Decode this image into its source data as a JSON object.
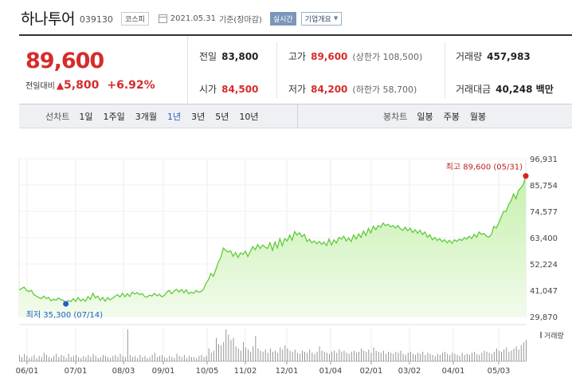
{
  "header": {
    "stock_name": "하나투어",
    "stock_code": "039130",
    "market": "코스피",
    "date": "2021.05.31",
    "date_suffix": "기준(장마감)",
    "realtime": "실시간",
    "overview": "기업개요"
  },
  "price": {
    "current": "89,600",
    "change_label": "전일대비",
    "change_value": "5,800",
    "change_percent": "+6.92%"
  },
  "stats": {
    "prev_label": "전일",
    "prev": "83,800",
    "open_label": "시가",
    "open": "84,500",
    "high_label": "고가",
    "high": "89,600",
    "upper_limit": "(상한가 108,500)",
    "low_label": "저가",
    "low": "84,200",
    "lower_limit": "(하한가 58,700)",
    "volume_label": "거래량",
    "volume": "457,983",
    "amount_label": "거래대금",
    "amount": "40,248 백만"
  },
  "nav": {
    "line_title": "선차트",
    "line_items": [
      "1일",
      "1주일",
      "3개월",
      "1년",
      "3년",
      "5년",
      "10년"
    ],
    "active": "1년",
    "candle_title": "봉차트",
    "candle_items": [
      "일봉",
      "주봉",
      "월봉"
    ]
  },
  "colors": {
    "up": "#d62c2c",
    "line": "#5fcb3b",
    "fill_top": "#c6f0ad",
    "low_marker": "#1f5fc4",
    "high_marker": "#e01e1e"
  },
  "chart_data": {
    "type": "area",
    "y_ticks": [
      "96,931",
      "85,754",
      "74,577",
      "63,400",
      "52,224",
      "41,047",
      "29,870"
    ],
    "ylim": [
      29870,
      96931
    ],
    "x_ticks": [
      "06/01",
      "07/01",
      "08/03",
      "09/01",
      "10/05",
      "11/02",
      "12/01",
      "01/04",
      "02/01",
      "03/02",
      "04/01",
      "05/03"
    ],
    "series": [
      {
        "values": [
          41200,
          41800,
          42400,
          41000,
          40500,
          41000,
          39200,
          38600,
          38000,
          37500,
          38600,
          37500,
          38000,
          36600,
          37300,
          36800,
          37800,
          37000,
          36800,
          35300,
          36800,
          36200,
          37500,
          36300,
          38000,
          36500,
          37300,
          36400,
          38400,
          37200,
          39800,
          37800,
          38600,
          36800,
          38000,
          36400,
          38000,
          37000,
          37700,
          38500,
          39200,
          38200,
          39800,
          38300,
          39600,
          38400,
          40300,
          39500,
          40100,
          39200,
          39700,
          38400,
          38100,
          39000,
          38600,
          39800,
          38700,
          39400,
          38300,
          38800,
          40200,
          41000,
          39600,
          40700,
          41500,
          40300,
          41400,
          40000,
          41200,
          39600,
          40300,
          39800,
          41000,
          40200,
          40500,
          41600,
          44000,
          45600,
          48200,
          47000,
          50000,
          53000,
          55000,
          59000,
          58000,
          57300,
          57800,
          55500,
          57100,
          55000,
          57000,
          56300,
          57700,
          55400,
          57500,
          59600,
          58300,
          60500,
          58800,
          60300,
          59400,
          58800,
          61300,
          58000,
          61500,
          59000,
          63000,
          60000,
          63000,
          62000,
          64500,
          62300,
          66000,
          64500,
          65500,
          63800,
          64800,
          61800,
          62700,
          61200,
          62000,
          60800,
          61800,
          60600,
          61500,
          60000,
          62800,
          60300,
          62500,
          61200,
          63500,
          62800,
          64000,
          62000,
          63300,
          61800,
          64600,
          62800,
          65000,
          63500,
          66200,
          64300,
          67300,
          65400,
          68300,
          66800,
          68500,
          67800,
          69600,
          68500,
          69100,
          68000,
          68500,
          67500,
          68500,
          67200,
          66500,
          67800,
          66300,
          67400,
          65600,
          66800,
          65300,
          66600,
          64800,
          65800,
          63600,
          64600,
          62500,
          63500,
          62200,
          63000,
          61700,
          62600,
          61200,
          62300,
          61000,
          62500,
          61800,
          62800,
          62200,
          63400,
          62800,
          64000,
          63000,
          64800,
          63600,
          65800,
          64800,
          65200,
          64000,
          63600,
          64800,
          68200,
          67500,
          69600,
          72200,
          74600,
          74500,
          77500,
          79000,
          82000,
          80000,
          83400,
          84500,
          86000,
          89600
        ],
        "volumes": [
          6,
          4,
          7,
          5,
          3,
          4,
          6,
          3,
          5,
          4,
          8,
          6,
          4,
          3,
          5,
          7,
          4,
          6,
          5,
          3,
          7,
          4,
          5,
          6,
          4,
          3,
          5,
          4,
          6,
          4,
          7,
          5,
          3,
          4,
          6,
          5,
          4,
          3,
          5,
          6,
          4,
          7,
          5,
          4,
          30,
          6,
          4,
          5,
          3,
          6,
          4,
          5,
          3,
          4,
          6,
          8,
          4,
          5,
          6,
          4,
          3,
          5,
          4,
          3,
          7,
          5,
          4,
          6,
          3,
          5,
          4,
          4,
          3,
          5,
          6,
          4,
          5,
          12,
          8,
          10,
          22,
          16,
          15,
          18,
          30,
          25,
          20,
          22,
          14,
          12,
          10,
          18,
          13,
          11,
          9,
          14,
          24,
          12,
          10,
          9,
          11,
          8,
          12,
          9,
          10,
          8,
          13,
          11,
          15,
          12,
          10,
          9,
          11,
          8,
          7,
          10,
          9,
          8,
          11,
          8,
          7,
          9,
          14,
          10,
          9,
          8,
          7,
          9,
          10,
          8,
          11,
          9,
          10,
          8,
          7,
          9,
          10,
          8,
          9,
          12,
          10,
          9,
          11,
          8,
          13,
          10,
          9,
          8,
          10,
          7,
          9,
          8,
          7,
          9,
          8,
          10,
          7,
          6,
          8,
          9,
          7,
          6,
          8,
          7,
          9,
          6,
          8,
          7,
          6,
          5,
          7,
          6,
          8,
          9,
          7,
          6,
          8,
          7,
          6,
          5,
          8,
          6,
          7,
          6,
          8,
          9,
          7,
          6,
          8,
          10,
          9,
          8,
          7,
          9,
          12,
          10,
          9,
          11,
          13,
          9,
          10,
          12,
          14,
          11,
          15,
          18,
          20
        ],
        "low_label": "최저 35,300 (07/14)",
        "high_label": "최고 89,600 (05/31)",
        "volume_label": "거래량"
      }
    ]
  }
}
